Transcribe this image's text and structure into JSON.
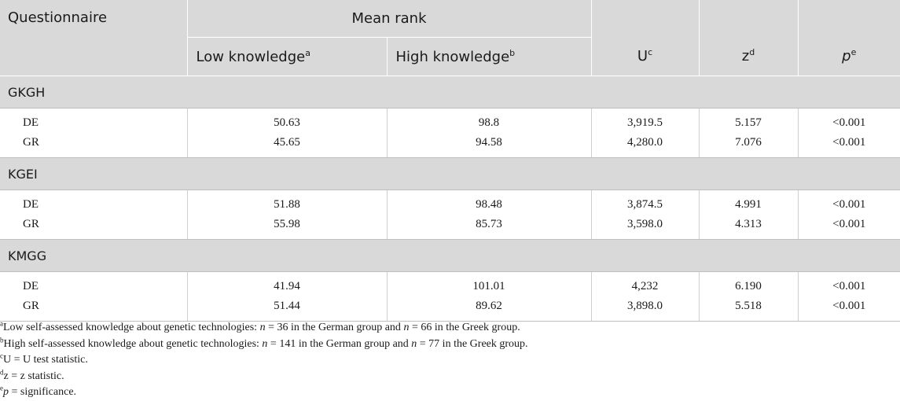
{
  "header": {
    "questionnaire": "Questionnaire",
    "mean_rank": "Mean rank",
    "low_knowledge": "Low knowledge",
    "low_sup": "a",
    "high_knowledge": "High knowledge",
    "high_sup": "b",
    "u": "U",
    "u_sup": "c",
    "z": "z",
    "z_sup": "d",
    "p": "p",
    "p_sup": "e"
  },
  "groups": [
    {
      "name": "GKGH",
      "rows": [
        {
          "country": "DE",
          "low": "50.63",
          "high": "98.8",
          "u": "3,919.5",
          "z": "5.157",
          "p": "<0.001"
        },
        {
          "country": "GR",
          "low": "45.65",
          "high": "94.58",
          "u": "4,280.0",
          "z": "7.076",
          "p": "<0.001"
        }
      ]
    },
    {
      "name": "KGEI",
      "rows": [
        {
          "country": "DE",
          "low": "51.88",
          "high": "98.48",
          "u": "3,874.5",
          "z": "4.991",
          "p": "<0.001"
        },
        {
          "country": "GR",
          "low": "55.98",
          "high": "85.73",
          "u": "3,598.0",
          "z": "4.313",
          "p": "<0.001"
        }
      ]
    },
    {
      "name": "KMGG",
      "rows": [
        {
          "country": "DE",
          "low": "41.94",
          "high": "101.01",
          "u": "4,232",
          "z": "6.190",
          "p": "<0.001"
        },
        {
          "country": "GR",
          "low": "51.44",
          "high": "89.62",
          "u": "3,898.0",
          "z": "5.518",
          "p": "<0.001"
        }
      ]
    }
  ],
  "footnotes": {
    "a": {
      "mark": "a",
      "part1": "Low self-assessed knowledge about genetic technologies: ",
      "n1_var": "n",
      "part2": " = 36 in the German group and ",
      "n2_var": "n",
      "part3": " = 66 in the Greek group."
    },
    "b": {
      "mark": "b",
      "part1": "High self-assessed knowledge about genetic technologies: ",
      "n1_var": "n",
      "part2": " = 141 in the German group and ",
      "n2_var": "n",
      "part3": " = 77 in the Greek group."
    },
    "c": {
      "mark": "c",
      "text": "U = U test statistic."
    },
    "d": {
      "mark": "d",
      "text": "z = z statistic."
    },
    "e": {
      "mark": "e",
      "var": "p",
      "text": " = significance."
    }
  }
}
